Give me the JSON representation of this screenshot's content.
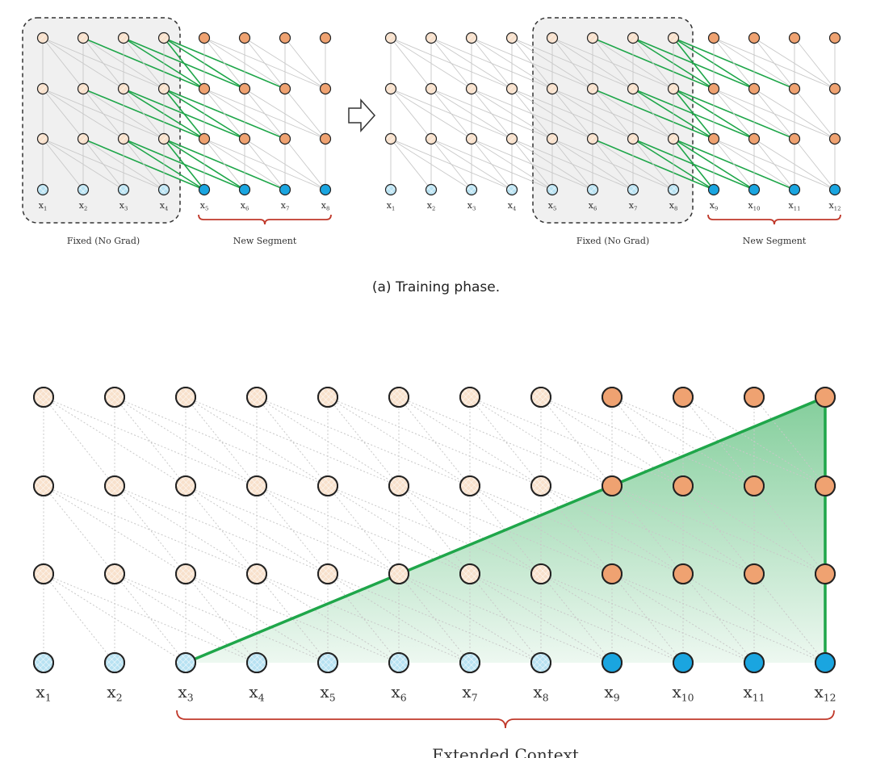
{
  "training": {
    "panel1": {
      "labels": [
        "x1",
        "x2",
        "x3",
        "x4",
        "x5",
        "x6",
        "x7",
        "x8"
      ],
      "fixed_label": "Fixed (No Grad)",
      "segment_label": "New Segment"
    },
    "panel2": {
      "labels": [
        "x1",
        "x2",
        "x3",
        "x4",
        "x5",
        "x6",
        "x7",
        "x8",
        "x9",
        "x10",
        "x11",
        "x12"
      ],
      "fixed_label": "Fixed (No Grad)",
      "segment_label": "New Segment"
    },
    "caption": "(a) Training phase."
  },
  "inference": {
    "labels": [
      "x1",
      "x2",
      "x3",
      "x4",
      "x5",
      "x6",
      "x7",
      "x8",
      "x9",
      "x10",
      "x11",
      "x12"
    ],
    "context_label": "Extended Context"
  },
  "colors": {
    "fixed_hidden": "#f8e1cc",
    "segment_hidden": "#efa271",
    "fixed_input": "#b8e2f2",
    "segment_input": "#1aa5e0",
    "attention_green": "#1fa64a",
    "dependency_gray": "#c8c8c8",
    "brace_red": "#c0392b",
    "fixed_box": "#f0f0f0"
  }
}
